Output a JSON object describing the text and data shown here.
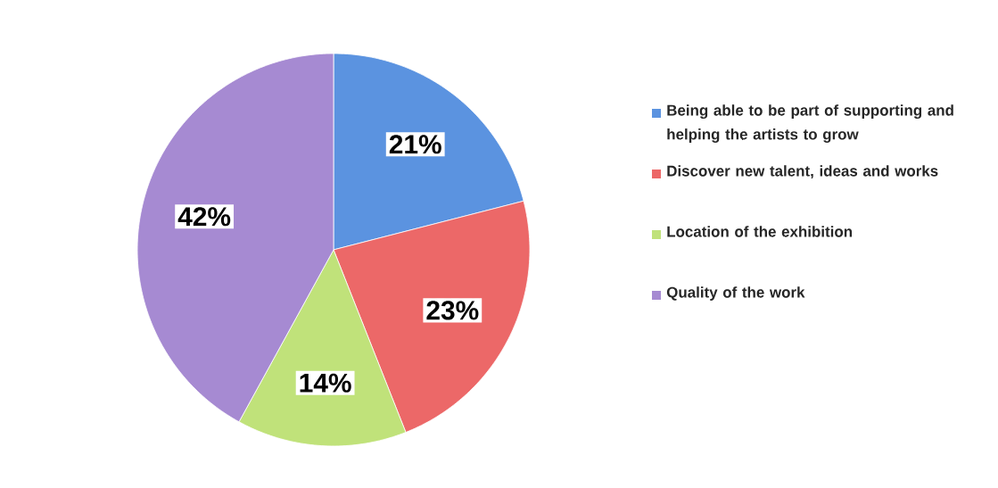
{
  "chart_data": {
    "type": "pie",
    "categories": [
      "Being able to be part of supporting and helping the artists to grow",
      "Discover new talent, ideas and works",
      "Location of the exhibition",
      "Quality of the work"
    ],
    "values": [
      21,
      23,
      14,
      42
    ],
    "colors": [
      "#5b93e0",
      "#ec6868",
      "#c0e27a",
      "#a68ad2"
    ],
    "value_labels": [
      "21%",
      "23%",
      "14%",
      "42%"
    ],
    "legend": "right"
  }
}
